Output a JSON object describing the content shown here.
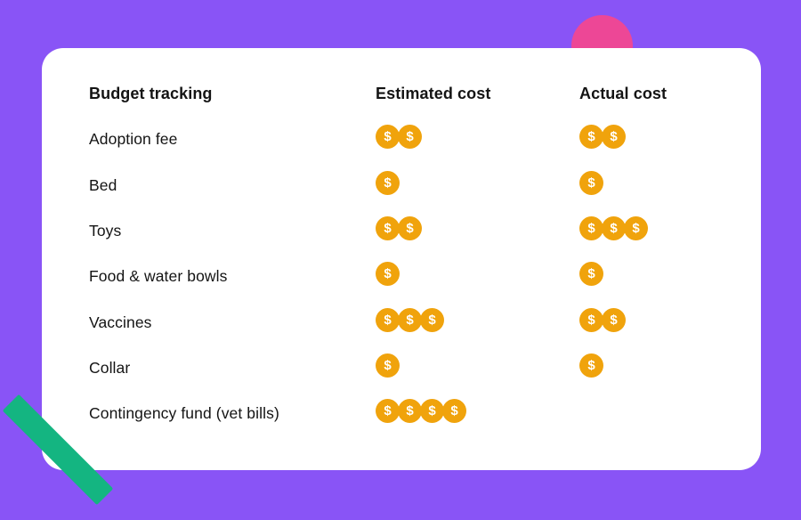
{
  "chart_data": {
    "type": "table",
    "title": "Budget tracking",
    "categories": [
      "Adoption fee",
      "Bed",
      "Toys",
      "Food & water bowls",
      "Vaccines",
      "Collar",
      "Contingency fund (vet bills)"
    ],
    "series": [
      {
        "name": "Estimated cost",
        "values": [
          2,
          1,
          2,
          1,
          3,
          1,
          4
        ]
      },
      {
        "name": "Actual cost",
        "values": [
          2,
          1,
          3,
          1,
          2,
          1,
          0
        ]
      }
    ],
    "unit": "dollar-coin icons (1 coin = 1 cost unit)",
    "legend_position": "none",
    "grid": false
  },
  "coin": {
    "symbol": "$"
  },
  "colors": {
    "background": "#8954F6",
    "card": "#FFFFFF",
    "coin": "#F0A30C",
    "pink_circle": "#ED4796",
    "green_bar": "#14B581",
    "text": "#141414"
  }
}
